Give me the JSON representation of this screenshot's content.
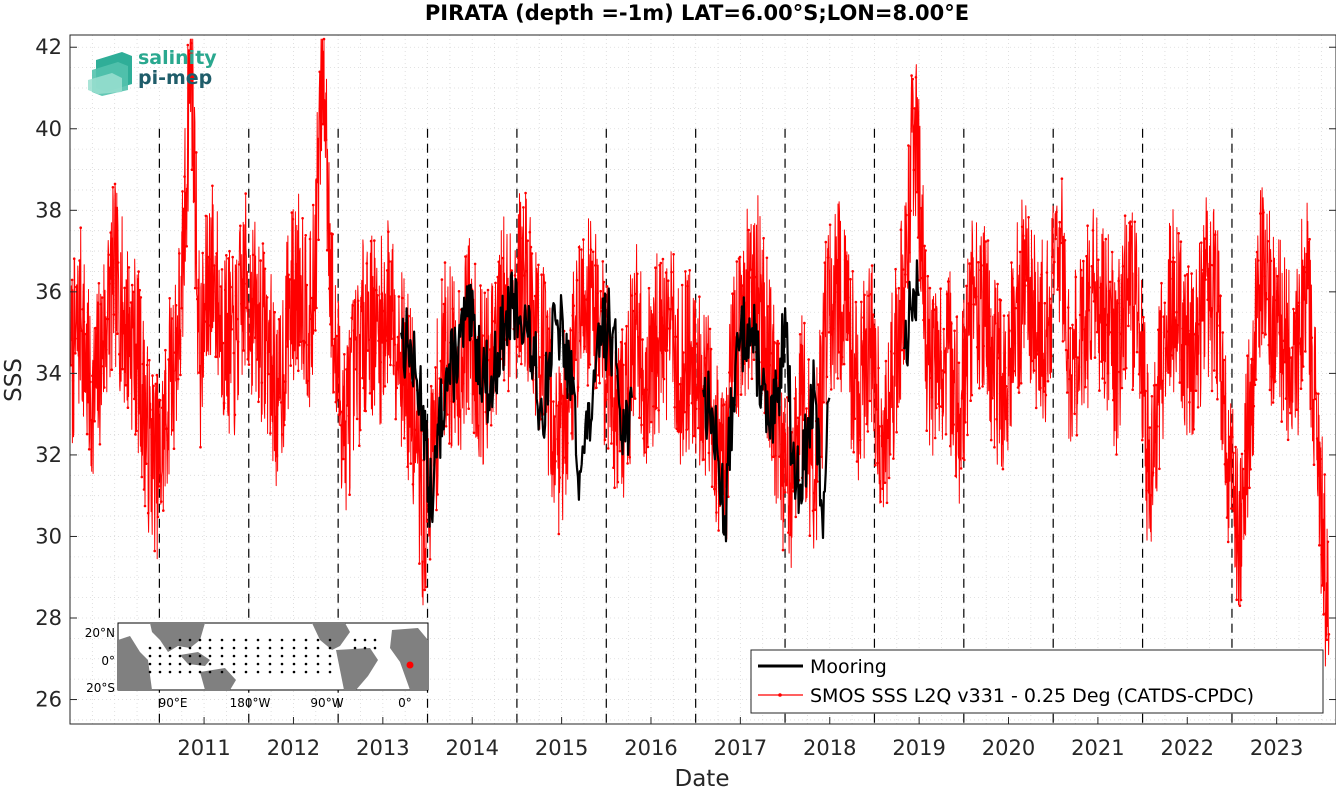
{
  "chart_data": {
    "type": "line",
    "title": "PIRATA (depth =-1m) LAT=6.00°S;LON=8.00°E",
    "xlabel": "Date",
    "ylabel": "SSS",
    "xlim": [
      "2010-01-01",
      "2024-03-01"
    ],
    "ylim": [
      25.4,
      42.3
    ],
    "x_ticks": [
      "2011",
      "2012",
      "2013",
      "2014",
      "2015",
      "2016",
      "2017",
      "2018",
      "2019",
      "2020",
      "2021",
      "2022",
      "2023"
    ],
    "y_ticks": [
      "26",
      "28",
      "30",
      "32",
      "34",
      "36",
      "38",
      "40",
      "42"
    ],
    "grid": true,
    "year_dividers": [
      2011,
      2012,
      2013,
      2014,
      2015,
      2016,
      2017,
      2018,
      2019,
      2020,
      2021,
      2022,
      2023
    ],
    "legend_position": "bottom-right",
    "series": [
      {
        "name": "Mooring",
        "color": "#000000",
        "style": "line",
        "x": [
          "2013-09-15",
          "2013-10-15",
          "2013-11-15",
          "2013-12-15",
          "2014-01-05",
          "2014-01-25",
          "2014-02-15",
          "2014-03-15",
          "2014-04-15",
          "2014-05-15",
          "2014-06-15",
          "2014-07-15",
          "2014-08-15",
          "2014-09-15",
          "2014-10-15",
          "2014-11-15",
          "2014-12-15",
          "2015-01-15",
          "2015-02-15",
          "2015-03-15",
          "2015-04-15",
          "2015-05-15",
          "2015-06-15",
          "2015-07-15",
          "2015-08-15",
          "2015-09-15",
          "2015-10-15",
          "2015-11-15",
          "2015-12-15",
          "2016-01-15",
          "2016-02-15",
          "2016-03-15",
          "2016-04-15",
          "2017-02-01",
          "2017-03-01",
          "2017-04-01",
          "2017-05-01",
          "2017-06-01",
          "2017-07-01",
          "2017-08-01",
          "2017-09-01",
          "2017-10-01",
          "2017-11-01",
          "2017-12-01",
          "2018-01-01",
          "2018-02-01",
          "2018-03-01",
          "2018-04-01",
          "2018-05-01",
          "2018-06-01",
          "2018-07-01",
          "2019-05-01",
          "2019-06-01",
          "2019-07-01"
        ],
        "values": [
          35.0,
          34.6,
          33.9,
          33.2,
          31.2,
          31.0,
          32.5,
          33.8,
          34.2,
          34.9,
          35.4,
          34.8,
          34.1,
          33.6,
          34.5,
          35.2,
          35.6,
          35.4,
          34.9,
          34.2,
          32.9,
          34.5,
          35.3,
          34.7,
          33.5,
          31.6,
          32.4,
          33.8,
          34.9,
          35.2,
          34.1,
          32.5,
          33.4,
          33.6,
          33.0,
          32.0,
          30.5,
          33.4,
          34.8,
          35.2,
          34.7,
          33.6,
          32.4,
          33.3,
          35.6,
          31.8,
          31.2,
          32.3,
          33.6,
          30.6,
          33.4,
          34.6,
          35.6,
          35.9
        ]
      },
      {
        "name": "SMOS SSS L2Q v331 - 0.25 Deg (CATDS-CPDC)",
        "color": "#ff0000",
        "style": "line-dots",
        "x": [
          "2010-01-05",
          "2010-02-15",
          "2010-04-01",
          "2010-05-15",
          "2010-07-01",
          "2010-08-15",
          "2010-10-01",
          "2010-11-15",
          "2011-01-01",
          "2011-02-15",
          "2011-04-01",
          "2011-05-10",
          "2011-06-15",
          "2011-08-01",
          "2011-09-15",
          "2011-11-01",
          "2011-12-15",
          "2012-02-01",
          "2012-03-15",
          "2012-05-01",
          "2012-06-15",
          "2012-08-01",
          "2012-09-15",
          "2012-11-01",
          "2012-12-15",
          "2013-02-01",
          "2013-03-15",
          "2013-05-01",
          "2013-06-15",
          "2013-08-01",
          "2013-09-15",
          "2013-11-01",
          "2013-12-15",
          "2014-02-01",
          "2014-03-15",
          "2014-05-01",
          "2014-06-15",
          "2014-08-01",
          "2014-09-15",
          "2014-11-01",
          "2014-12-15",
          "2015-02-01",
          "2015-03-15",
          "2015-05-01",
          "2015-06-15",
          "2015-08-01",
          "2015-09-15",
          "2015-11-01",
          "2015-12-15",
          "2016-02-01",
          "2016-03-15",
          "2016-05-01",
          "2016-06-15",
          "2016-08-01",
          "2016-09-15",
          "2016-11-01",
          "2016-12-15",
          "2017-02-01",
          "2017-03-15",
          "2017-05-01",
          "2017-06-15",
          "2017-08-01",
          "2017-09-15",
          "2017-11-01",
          "2017-12-15",
          "2018-02-01",
          "2018-03-15",
          "2018-05-01",
          "2018-06-15",
          "2018-08-01",
          "2018-09-15",
          "2018-11-01",
          "2018-12-15",
          "2019-02-01",
          "2019-03-15",
          "2019-05-01",
          "2019-06-15",
          "2019-08-01",
          "2019-09-15",
          "2019-11-01",
          "2019-12-15",
          "2020-02-01",
          "2020-03-15",
          "2020-05-01",
          "2020-06-15",
          "2020-08-01",
          "2020-09-15",
          "2020-11-01",
          "2020-12-15",
          "2021-02-01",
          "2021-03-15",
          "2021-05-01",
          "2021-06-15",
          "2021-08-01",
          "2021-09-15",
          "2021-11-01",
          "2021-12-15",
          "2022-02-01",
          "2022-03-15",
          "2022-05-01",
          "2022-06-15",
          "2022-08-01",
          "2022-09-15",
          "2022-11-01",
          "2022-12-15",
          "2023-02-01",
          "2023-03-15",
          "2023-05-01",
          "2023-06-15",
          "2023-08-01",
          "2023-09-15",
          "2023-11-01",
          "2023-12-15",
          "2024-02-01"
        ],
        "values": [
          34.2,
          35.4,
          33.0,
          34.8,
          36.5,
          35.2,
          34.6,
          32.4,
          31.6,
          33.8,
          35.6,
          42.1,
          34.2,
          36.8,
          35.1,
          34.5,
          36.2,
          35.4,
          34.8,
          33.2,
          35.6,
          36.4,
          35.0,
          41.9,
          34.4,
          32.8,
          34.1,
          35.6,
          34.8,
          35.9,
          34.5,
          33.1,
          30.2,
          32.6,
          34.8,
          33.9,
          35.2,
          34.1,
          33.8,
          35.6,
          35.9,
          36.4,
          35.1,
          34.2,
          32.0,
          33.5,
          35.7,
          36.1,
          34.8,
          33.4,
          32.9,
          35.2,
          33.6,
          34.8,
          35.1,
          33.9,
          34.6,
          33.7,
          32.8,
          31.6,
          34.9,
          35.8,
          36.1,
          34.2,
          32.0,
          31.2,
          33.6,
          31.4,
          34.9,
          36.2,
          34.8,
          33.5,
          35.1,
          32.2,
          33.9,
          36.1,
          40.5,
          34.7,
          33.8,
          34.6,
          33.0,
          35.4,
          36.0,
          34.2,
          33.5,
          35.6,
          36.3,
          34.9,
          35.2,
          37.2,
          33.9,
          34.8,
          36.1,
          35.6,
          34.2,
          36.0,
          35.3,
          31.0,
          33.8,
          35.9,
          35.1,
          34.2,
          36.3,
          35.5,
          31.9,
          30.0,
          33.2,
          36.5,
          35.4,
          34.8,
          33.9,
          36.6,
          32.4,
          27.6
        ]
      }
    ]
  },
  "logo": {
    "line1": "salinity",
    "line2": "pi-mep"
  },
  "inset_map": {
    "lat_labels": [
      "20°N",
      "0°",
      "20°S"
    ],
    "lon_labels": [
      "90°E",
      "180°W",
      "90°W",
      "0°"
    ],
    "land_color": "#808080",
    "site_color": "#ff0000"
  }
}
